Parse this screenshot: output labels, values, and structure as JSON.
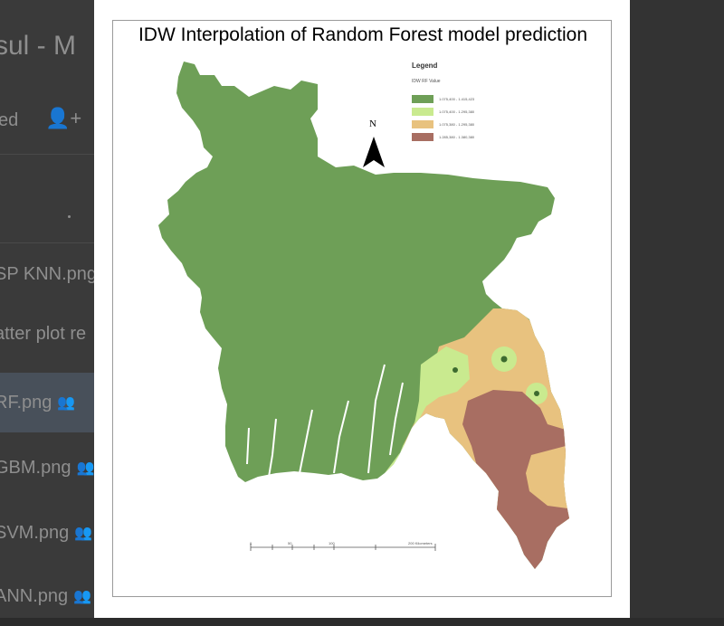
{
  "background_app": {
    "title_fragment": "sul - M",
    "share_label": "ed",
    "files": [
      {
        "name": "SP KNN.png",
        "shared": false,
        "selected": false
      },
      {
        "name": "atter plot re",
        "shared": false,
        "selected": false
      },
      {
        "name": "RF.png",
        "shared": true,
        "selected": true
      },
      {
        "name": "GBM.png",
        "shared": true,
        "selected": false
      },
      {
        "name": "SVM.png",
        "shared": true,
        "selected": false
      },
      {
        "name": "ANN.png",
        "shared": true,
        "selected": false
      }
    ]
  },
  "map": {
    "title": "IDW Interpolation of Random Forest model prediction",
    "legend": {
      "title": "Legend",
      "subtitle": "IDW RF Value",
      "items": [
        {
          "label": "1.075,400 - 1.415,423",
          "color": "#6e9f57"
        },
        {
          "label": "1.075,400 - 1.295,380",
          "color": "#c9ea8f"
        },
        {
          "label": "1.075,380 - 1.295,380",
          "color": "#e8c27f"
        },
        {
          "label": "1.285,380 - 1.380,380",
          "color": "#a86e62"
        }
      ]
    },
    "north_label": "N",
    "scale_labels": [
      "0",
      "50",
      "100",
      "200 Kilometers"
    ]
  },
  "colors": {
    "green": "#6e9f57",
    "light_green": "#c9ea8f",
    "tan": "#e8c27f",
    "brown": "#a86e62"
  }
}
